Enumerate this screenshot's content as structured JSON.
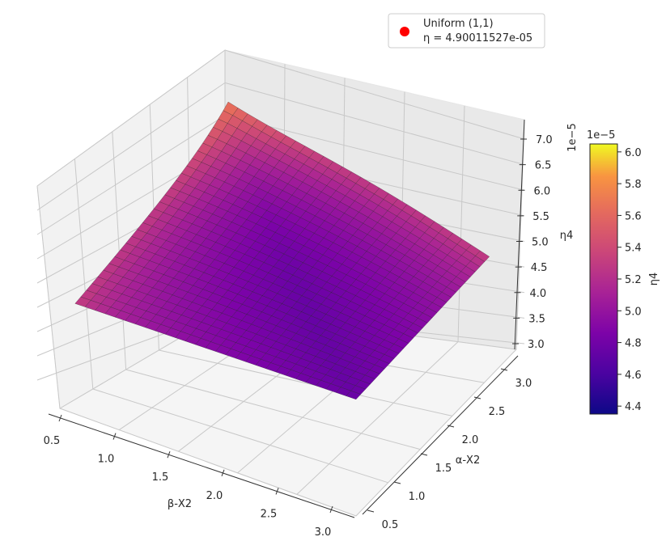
{
  "chart_data": {
    "type": "surface3d",
    "title": "",
    "xlabel": "β-X2",
    "ylabel": "α-X2",
    "zlabel": "η4",
    "x_ticks": [
      "0.5",
      "1.0",
      "1.5",
      "2.0",
      "2.5",
      "3.0"
    ],
    "y_ticks": [
      "0.5",
      "1.0",
      "1.5",
      "2.0",
      "2.5",
      "3.0"
    ],
    "z_ticks": [
      "3.0",
      "3.5",
      "4.0",
      "4.5",
      "5.0",
      "5.5",
      "6.0",
      "6.5",
      "7.0"
    ],
    "z_offset_text": "1e−5",
    "xlim": [
      0.5,
      3.0
    ],
    "ylim": [
      0.5,
      3.0
    ],
    "zlim": [
      2.9e-05,
      7.2e-05
    ],
    "grid": true,
    "colormap": "plasma",
    "surface_samples": {
      "corner_beta0.5_alpha0.5": 6.05e-05,
      "corner_beta3.0_alpha0.5": 4.35e-05,
      "corner_beta3.0_alpha3.0": 4.9e-05,
      "corner_beta0.5_alpha3.0": 5e-05
    },
    "colorbar": {
      "label": "η4",
      "offset_text": "1e−5",
      "ticks": [
        "4.4",
        "4.6",
        "4.8",
        "5.0",
        "5.2",
        "5.4",
        "5.6",
        "5.8",
        "6.0"
      ],
      "min": 4.35,
      "max": 6.05
    },
    "marker": {
      "x": 1,
      "y": 1,
      "z": 4.90011527e-05,
      "color": "#ff0000"
    },
    "legend": {
      "location": "top-right",
      "label_line1": "Uniform (1,1)",
      "label_line2": "η = 4.90011527e-05"
    }
  }
}
